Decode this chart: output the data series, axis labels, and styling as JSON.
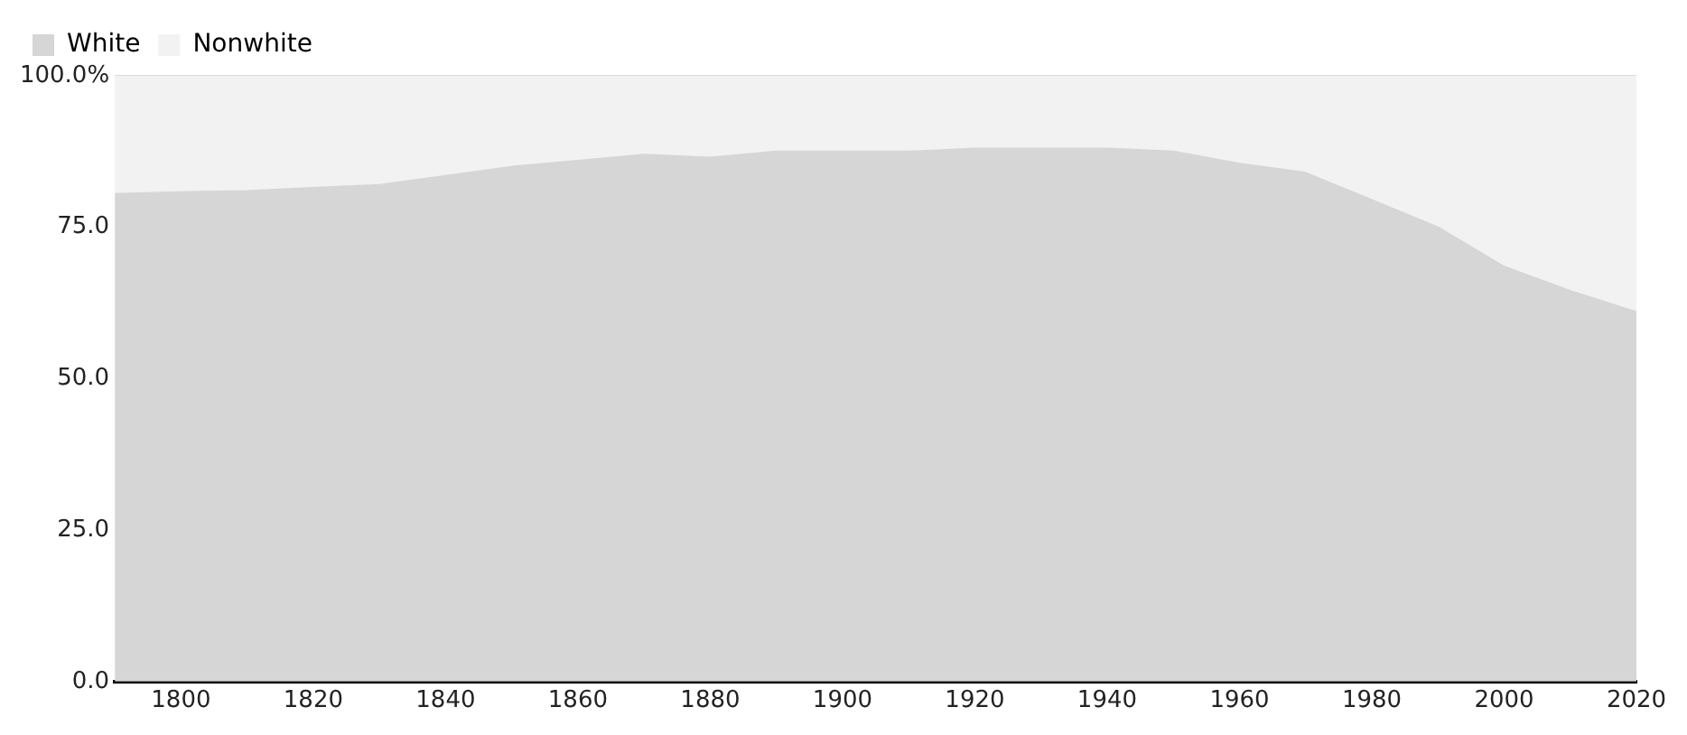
{
  "chart_data": {
    "type": "area",
    "stacked": true,
    "legend": "top left",
    "grid": "y",
    "x": [
      1790,
      1800,
      1810,
      1820,
      1830,
      1840,
      1850,
      1860,
      1870,
      1880,
      1890,
      1900,
      1910,
      1920,
      1930,
      1940,
      1950,
      1960,
      1970,
      1980,
      1990,
      2000,
      2010,
      2020
    ],
    "series": [
      {
        "name": "White",
        "color": "#d6d6d6",
        "values": [
          80.5,
          80.8,
          81,
          81.5,
          82,
          83.5,
          85,
          86,
          87,
          86.5,
          87.5,
          87.5,
          87.5,
          88,
          88,
          88,
          87.5,
          85.5,
          84,
          79.5,
          75,
          68.5,
          64.5,
          61
        ]
      },
      {
        "name": "Nonwhite",
        "color": "#f2f2f2",
        "values": [
          19.5,
          19.2,
          19,
          18.5,
          18,
          16.5,
          15,
          14,
          13,
          13.5,
          12.5,
          12.5,
          12.5,
          12,
          12,
          12,
          12.5,
          14.5,
          16,
          20.5,
          25,
          31.5,
          35.5,
          39
        ]
      }
    ],
    "xlim": [
      1790,
      2020
    ],
    "xticks": [
      1800,
      1820,
      1840,
      1860,
      1880,
      1900,
      1920,
      1940,
      1960,
      1980,
      2000,
      2020
    ],
    "ylim": [
      0,
      100
    ],
    "yticks": [
      {
        "value": 0,
        "label": "0.0"
      },
      {
        "value": 25,
        "label": "25.0"
      },
      {
        "value": 50,
        "label": "50.0"
      },
      {
        "value": 75,
        "label": "75.0"
      },
      {
        "value": 100,
        "label": "100.0%"
      }
    ]
  }
}
